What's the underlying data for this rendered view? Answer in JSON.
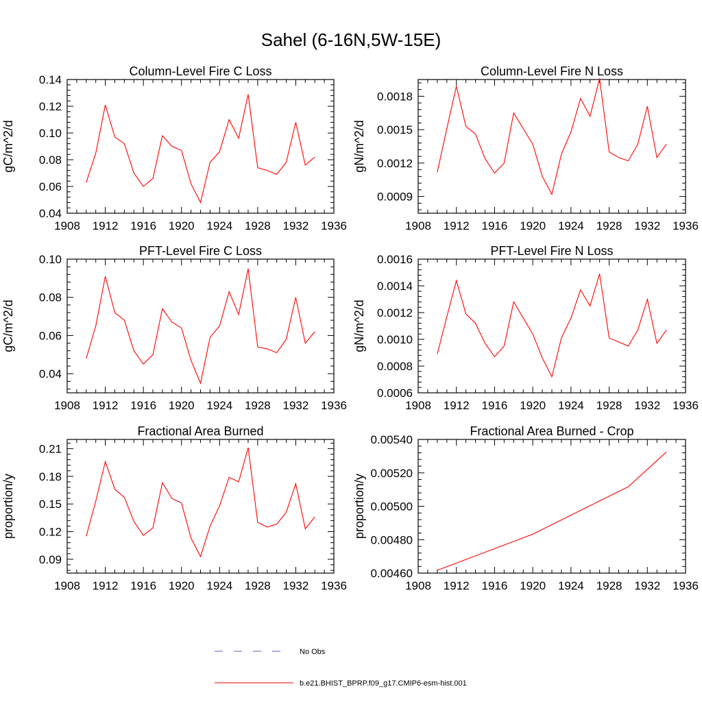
{
  "title": "Sahel (6-16N,5W-15E)",
  "x_ticks": [
    "1908",
    "1912",
    "1916",
    "1920",
    "1924",
    "1928",
    "1932",
    "1936"
  ],
  "legend": {
    "position": "bottom-center",
    "entries": [
      {
        "label": "No Obs",
        "color": "#5a5ac8",
        "dash": "dashed"
      },
      {
        "label": "b.e21.BHIST_BPRP.f09_g17.CMIP6-esm-hist.001",
        "color": "#ff0000",
        "dash": "solid"
      }
    ]
  },
  "series_color": "#ff0000",
  "chart_data": [
    {
      "type": "line",
      "title": "Column-Level Fire C Loss",
      "ylabel": "gC/m^2/d",
      "xlim": [
        1908,
        1936
      ],
      "ylim": [
        0.04,
        0.14
      ],
      "yticks": [
        "0.04",
        "0.06",
        "0.08",
        "0.10",
        "0.12",
        "0.14"
      ],
      "x": [
        1910,
        1911,
        1912,
        1913,
        1914,
        1915,
        1916,
        1917,
        1918,
        1919,
        1920,
        1921,
        1922,
        1923,
        1924,
        1925,
        1926,
        1927,
        1928,
        1929,
        1930,
        1931,
        1932,
        1933,
        1934
      ],
      "series": [
        {
          "values": [
            0.063,
            0.085,
            0.121,
            0.097,
            0.092,
            0.07,
            0.06,
            0.066,
            0.098,
            0.09,
            0.087,
            0.062,
            0.048,
            0.078,
            0.086,
            0.11,
            0.096,
            0.129,
            0.074,
            0.072,
            0.069,
            0.078,
            0.108,
            0.076,
            0.082
          ]
        }
      ]
    },
    {
      "type": "line",
      "title": "Column-Level Fire N Loss",
      "ylabel": "gN/m^2/d",
      "xlim": [
        1908,
        1936
      ],
      "ylim": [
        0.00075,
        0.00195
      ],
      "yticks": [
        "0.0009",
        "0.0012",
        "0.0015",
        "0.0018"
      ],
      "x": [
        1910,
        1911,
        1912,
        1913,
        1914,
        1915,
        1916,
        1917,
        1918,
        1919,
        1920,
        1921,
        1922,
        1923,
        1924,
        1925,
        1926,
        1927,
        1928,
        1929,
        1930,
        1931,
        1932,
        1933,
        1934
      ],
      "series": [
        {
          "values": [
            0.00112,
            0.00151,
            0.00189,
            0.00153,
            0.00146,
            0.00124,
            0.00111,
            0.0012,
            0.00165,
            0.00151,
            0.00137,
            0.00108,
            0.00092,
            0.00128,
            0.00148,
            0.00178,
            0.00162,
            0.00196,
            0.0013,
            0.00125,
            0.00122,
            0.00137,
            0.00171,
            0.00125,
            0.00137
          ]
        }
      ]
    },
    {
      "type": "line",
      "title": "PFT-Level Fire C Loss",
      "ylabel": "gC/m^2/d",
      "xlim": [
        1908,
        1936
      ],
      "ylim": [
        0.03,
        0.1
      ],
      "yticks": [
        "0.04",
        "0.06",
        "0.08",
        "0.10"
      ],
      "x": [
        1910,
        1911,
        1912,
        1913,
        1914,
        1915,
        1916,
        1917,
        1918,
        1919,
        1920,
        1921,
        1922,
        1923,
        1924,
        1925,
        1926,
        1927,
        1928,
        1929,
        1930,
        1931,
        1932,
        1933,
        1934
      ],
      "series": [
        {
          "values": [
            0.048,
            0.065,
            0.091,
            0.072,
            0.068,
            0.052,
            0.045,
            0.05,
            0.074,
            0.067,
            0.064,
            0.047,
            0.035,
            0.059,
            0.065,
            0.083,
            0.071,
            0.095,
            0.054,
            0.053,
            0.051,
            0.058,
            0.08,
            0.056,
            0.062
          ]
        }
      ]
    },
    {
      "type": "line",
      "title": "PFT-Level Fire N Loss",
      "ylabel": "gN/m^2/d",
      "xlim": [
        1908,
        1936
      ],
      "ylim": [
        0.0006,
        0.0016
      ],
      "yticks": [
        "0.0006",
        "0.0008",
        "0.0010",
        "0.0012",
        "0.0014",
        "0.0016"
      ],
      "x": [
        1910,
        1911,
        1912,
        1913,
        1914,
        1915,
        1916,
        1917,
        1918,
        1919,
        1920,
        1921,
        1922,
        1923,
        1924,
        1925,
        1926,
        1927,
        1928,
        1929,
        1930,
        1931,
        1932,
        1933,
        1934
      ],
      "series": [
        {
          "values": [
            0.00089,
            0.00117,
            0.00144,
            0.00119,
            0.00112,
            0.00097,
            0.00087,
            0.00095,
            0.00128,
            0.00116,
            0.00104,
            0.00086,
            0.00072,
            0.00101,
            0.00116,
            0.00137,
            0.00125,
            0.00149,
            0.00101,
            0.00098,
            0.00095,
            0.00107,
            0.0013,
            0.00097,
            0.00107
          ]
        }
      ]
    },
    {
      "type": "line",
      "title": "Fractional Area Burned",
      "ylabel": "proportion/y",
      "xlim": [
        1908,
        1936
      ],
      "ylim": [
        0.075,
        0.22
      ],
      "yticks": [
        "0.09",
        "0.12",
        "0.15",
        "0.18",
        "0.21"
      ],
      "x": [
        1910,
        1911,
        1912,
        1913,
        1914,
        1915,
        1916,
        1917,
        1918,
        1919,
        1920,
        1921,
        1922,
        1923,
        1924,
        1925,
        1926,
        1927,
        1928,
        1929,
        1930,
        1931,
        1932,
        1933,
        1934
      ],
      "series": [
        {
          "values": [
            0.115,
            0.153,
            0.196,
            0.166,
            0.157,
            0.131,
            0.116,
            0.124,
            0.173,
            0.156,
            0.151,
            0.113,
            0.093,
            0.126,
            0.148,
            0.179,
            0.174,
            0.211,
            0.13,
            0.125,
            0.128,
            0.141,
            0.172,
            0.123,
            0.136
          ]
        }
      ]
    },
    {
      "type": "line",
      "title": "Fractional Area Burned - Crop",
      "ylabel": "proportion/y",
      "xlim": [
        1908,
        1936
      ],
      "ylim": [
        0.0046,
        0.0054
      ],
      "yticks": [
        "0.00460",
        "0.00480",
        "0.00500",
        "0.00520",
        "0.00540"
      ],
      "x": [
        1910,
        1920,
        1930,
        1934
      ],
      "series": [
        {
          "values": [
            0.004617,
            0.004833,
            0.005117,
            0.005325
          ]
        }
      ]
    }
  ]
}
